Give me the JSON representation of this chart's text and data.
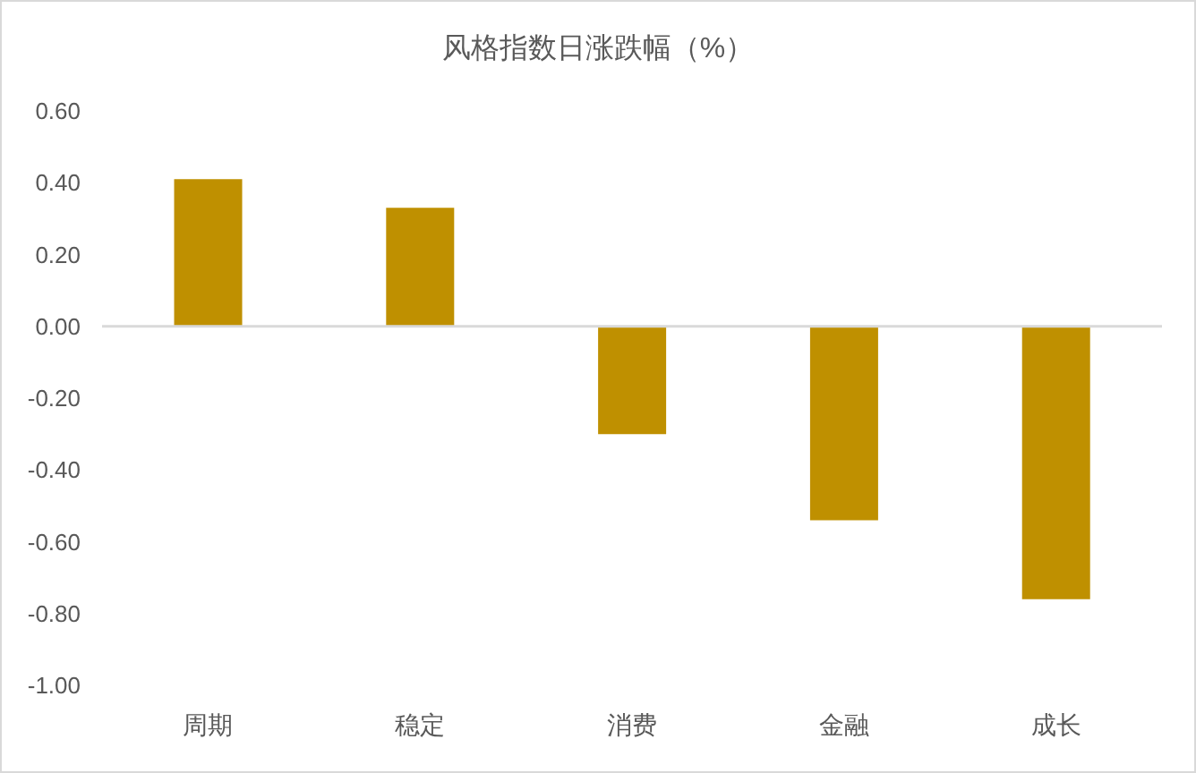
{
  "chart_data": {
    "type": "bar",
    "title": "风格指数日涨跌幅（%）",
    "categories": [
      "周期",
      "稳定",
      "消费",
      "金融",
      "成长"
    ],
    "values": [
      0.41,
      0.33,
      -0.3,
      -0.54,
      -0.76
    ],
    "color": "#bf9000",
    "ylim": [
      -1.0,
      0.6
    ],
    "yticks": [
      {
        "value": -1.0,
        "label": "-1.00"
      },
      {
        "value": -0.8,
        "label": "-0.80"
      },
      {
        "value": -0.6,
        "label": "-0.60"
      },
      {
        "value": -0.4,
        "label": "-0.40"
      },
      {
        "value": -0.2,
        "label": "-0.20"
      },
      {
        "value": 0,
        "label": "0.00"
      },
      {
        "value": 0.2,
        "label": "0.20"
      },
      {
        "value": 0.4,
        "label": "0.40"
      },
      {
        "value": 0.6,
        "label": "0.60"
      }
    ]
  }
}
